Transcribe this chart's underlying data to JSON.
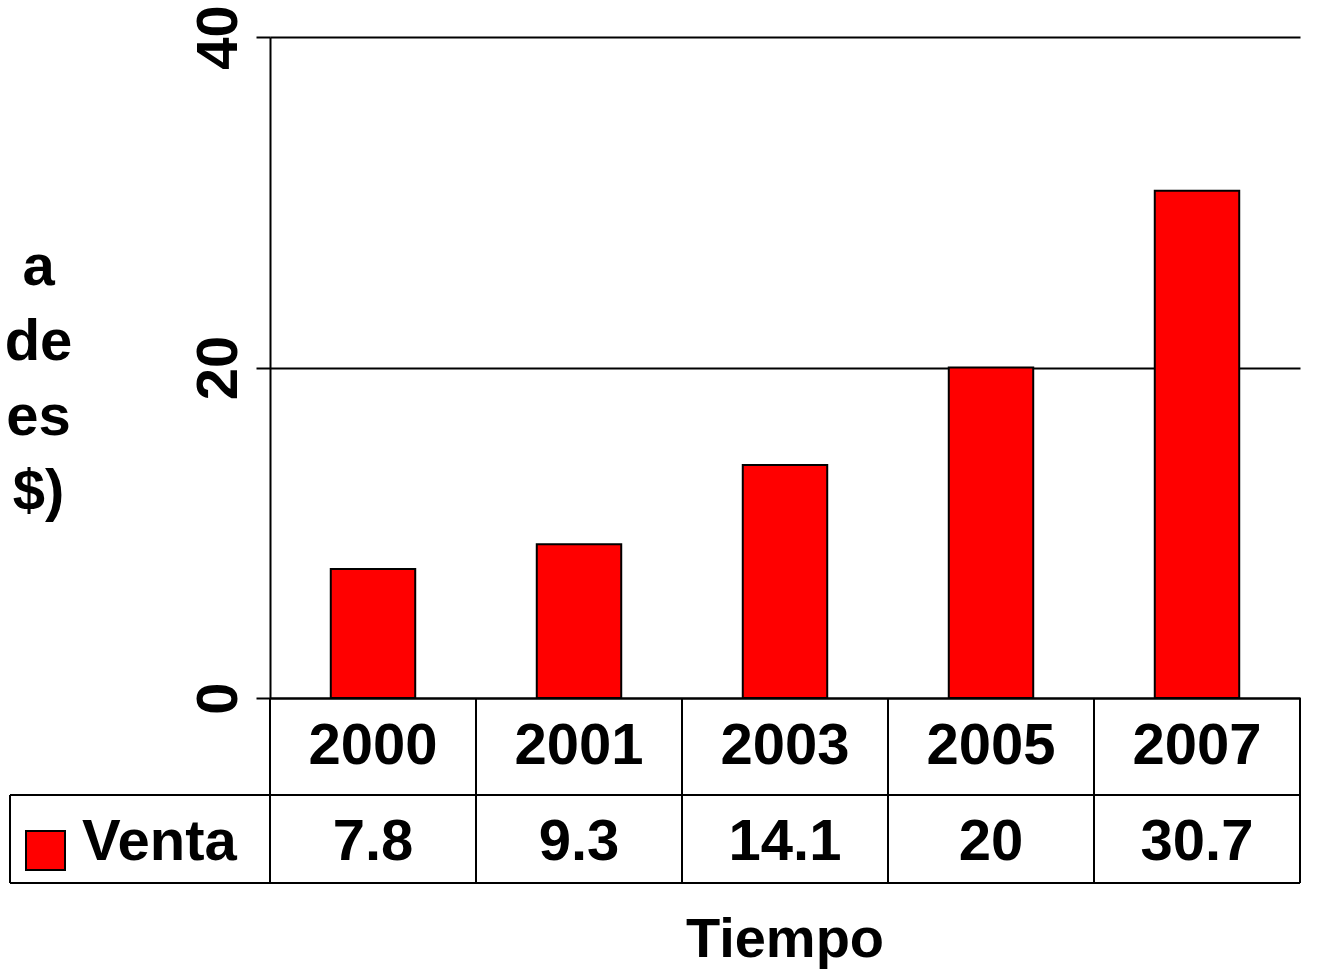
{
  "chart_data": {
    "type": "bar",
    "categories": [
      "2000",
      "2001",
      "2003",
      "2005",
      "2007"
    ],
    "series": [
      {
        "name": "Venta",
        "color": "#ff0000",
        "values": [
          7.8,
          9.3,
          14.1,
          20,
          30.7
        ]
      }
    ],
    "xlabel": "Tiempo",
    "ylabel": "a\nde\nes\n$)",
    "ylim": [
      0,
      40
    ],
    "yticks": [
      0,
      20,
      40
    ],
    "grid": "y",
    "legend": "bottom",
    "data_labels": true
  }
}
